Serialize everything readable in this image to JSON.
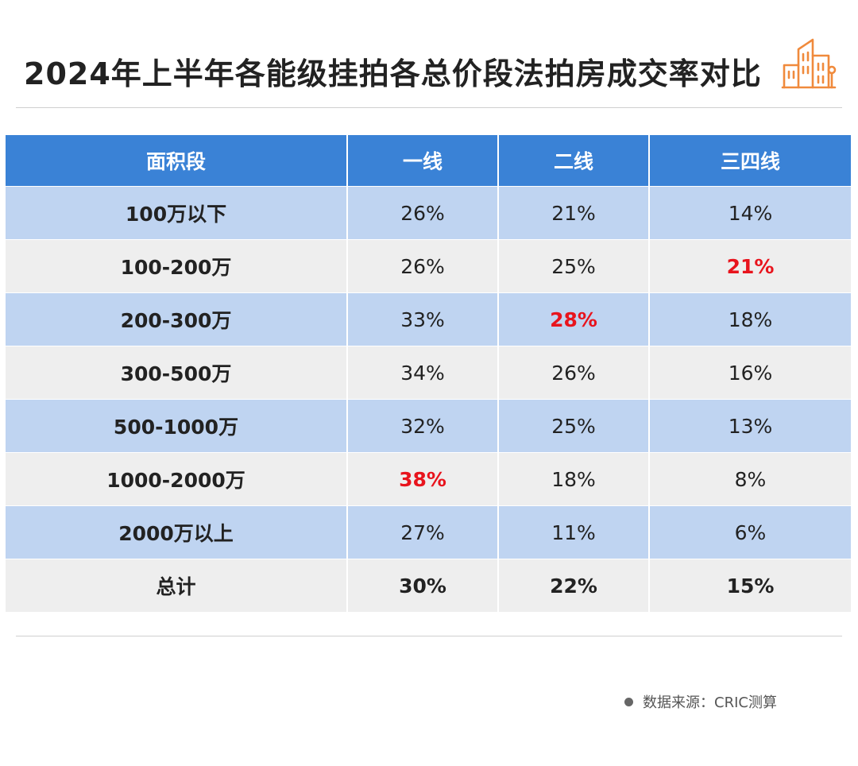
{
  "title": "2024年上半年各能级挂拍各总价段法拍房成交率对比",
  "source": "数据来源：CRIC测算",
  "header_icon": "building-icon",
  "highlight_color": "#e8141d",
  "header_color": "#3a82d6",
  "chart_data": {
    "type": "table",
    "columns": [
      "面积段",
      "一线",
      "二线",
      "三四线"
    ],
    "rows": [
      {
        "label": "100万以下",
        "values": [
          "26%",
          "21%",
          "14%"
        ],
        "highlight": [
          false,
          false,
          false
        ]
      },
      {
        "label": "100-200万",
        "values": [
          "26%",
          "25%",
          "21%"
        ],
        "highlight": [
          false,
          false,
          true
        ]
      },
      {
        "label": "200-300万",
        "values": [
          "33%",
          "28%",
          "18%"
        ],
        "highlight": [
          false,
          true,
          false
        ]
      },
      {
        "label": "300-500万",
        "values": [
          "34%",
          "26%",
          "16%"
        ],
        "highlight": [
          false,
          false,
          false
        ]
      },
      {
        "label": "500-1000万",
        "values": [
          "32%",
          "25%",
          "13%"
        ],
        "highlight": [
          false,
          false,
          false
        ]
      },
      {
        "label": "1000-2000万",
        "values": [
          "38%",
          "18%",
          "8%"
        ],
        "highlight": [
          true,
          false,
          false
        ]
      },
      {
        "label": "2000万以上",
        "values": [
          "27%",
          "11%",
          "6%"
        ],
        "highlight": [
          false,
          false,
          false
        ]
      },
      {
        "label": "总计",
        "values": [
          "30%",
          "22%",
          "15%"
        ],
        "highlight": [
          false,
          false,
          false
        ]
      }
    ]
  }
}
